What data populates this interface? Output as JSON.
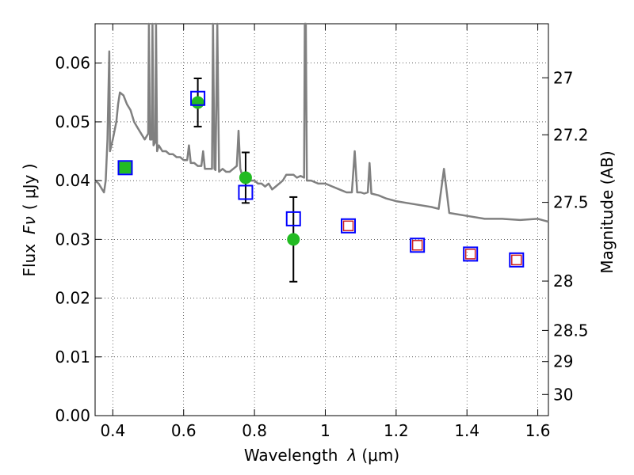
{
  "chart_data": {
    "type": "scatter",
    "xlabel_text": "Wavelength",
    "xlabel_symbol": "λ",
    "xlabel_unit": "(μm)",
    "ylabel_text": "Flux",
    "ylabel_symbol": "Fν",
    "ylabel_unit": "( μJy )",
    "y2label": "Magnitude (AB)",
    "xlim": [
      0.35,
      1.63
    ],
    "ylim": [
      0.0,
      0.0667
    ],
    "grid": true,
    "x_ticks": [
      {
        "value": 0.4,
        "label": "0.4"
      },
      {
        "value": 0.6,
        "label": "0.6"
      },
      {
        "value": 0.8,
        "label": "0.8"
      },
      {
        "value": 1.0,
        "label": "1"
      },
      {
        "value": 1.2,
        "label": "1.2"
      },
      {
        "value": 1.4,
        "label": "1.4"
      },
      {
        "value": 1.6,
        "label": "1.6"
      }
    ],
    "y_ticks": [
      {
        "value": 0.0,
        "label": "0.00"
      },
      {
        "value": 0.01,
        "label": "0.01"
      },
      {
        "value": 0.02,
        "label": "0.02"
      },
      {
        "value": 0.03,
        "label": "0.03"
      },
      {
        "value": 0.04,
        "label": "0.04"
      },
      {
        "value": 0.05,
        "label": "0.05"
      },
      {
        "value": 0.06,
        "label": "0.06"
      }
    ],
    "y2_ticks": [
      {
        "label": "27",
        "flux": 0.0575
      },
      {
        "label": "27.2",
        "flux": 0.0478
      },
      {
        "label": "27.5",
        "flux": 0.0363
      },
      {
        "label": "28",
        "flux": 0.0229
      },
      {
        "label": "28.5",
        "flux": 0.0145
      },
      {
        "label": "29",
        "flux": 0.0092
      },
      {
        "label": "30",
        "flux": 0.0036
      }
    ],
    "series": [
      {
        "kind": "model_spectrum",
        "color": "#808080",
        "points": [
          [
            0.35,
            0.04
          ],
          [
            0.36,
            0.0395
          ],
          [
            0.37,
            0.0385
          ],
          [
            0.375,
            0.038
          ],
          [
            0.38,
            0.04
          ],
          [
            0.385,
            0.047
          ],
          [
            0.39,
            0.062
          ],
          [
            0.392,
            0.045
          ],
          [
            0.4,
            0.047
          ],
          [
            0.41,
            0.05
          ],
          [
            0.415,
            0.053
          ],
          [
            0.42,
            0.055
          ],
          [
            0.43,
            0.0545
          ],
          [
            0.44,
            0.053
          ],
          [
            0.45,
            0.052
          ],
          [
            0.46,
            0.05
          ],
          [
            0.47,
            0.049
          ],
          [
            0.48,
            0.048
          ],
          [
            0.49,
            0.047
          ],
          [
            0.5,
            0.048
          ],
          [
            0.502,
            0.0667
          ],
          [
            0.505,
            0.047
          ],
          [
            0.51,
            0.047
          ],
          [
            0.512,
            0.0667
          ],
          [
            0.515,
            0.046
          ],
          [
            0.52,
            0.0465
          ],
          [
            0.522,
            0.0667
          ],
          [
            0.525,
            0.045
          ],
          [
            0.53,
            0.046
          ],
          [
            0.54,
            0.045
          ],
          [
            0.55,
            0.045
          ],
          [
            0.56,
            0.0445
          ],
          [
            0.57,
            0.0445
          ],
          [
            0.58,
            0.044
          ],
          [
            0.59,
            0.044
          ],
          [
            0.6,
            0.0435
          ],
          [
            0.61,
            0.0435
          ],
          [
            0.615,
            0.046
          ],
          [
            0.62,
            0.043
          ],
          [
            0.63,
            0.043
          ],
          [
            0.64,
            0.0425
          ],
          [
            0.65,
            0.0425
          ],
          [
            0.655,
            0.045
          ],
          [
            0.66,
            0.042
          ],
          [
            0.67,
            0.042
          ],
          [
            0.68,
            0.042
          ],
          [
            0.683,
            0.0667
          ],
          [
            0.687,
            0.042
          ],
          [
            0.69,
            0.0418
          ],
          [
            0.695,
            0.0667
          ],
          [
            0.7,
            0.0415
          ],
          [
            0.71,
            0.042
          ],
          [
            0.72,
            0.0415
          ],
          [
            0.73,
            0.0415
          ],
          [
            0.74,
            0.042
          ],
          [
            0.75,
            0.0425
          ],
          [
            0.755,
            0.0485
          ],
          [
            0.76,
            0.042
          ],
          [
            0.77,
            0.04
          ],
          [
            0.78,
            0.0405
          ],
          [
            0.79,
            0.04
          ],
          [
            0.8,
            0.04
          ],
          [
            0.81,
            0.0395
          ],
          [
            0.82,
            0.0395
          ],
          [
            0.83,
            0.039
          ],
          [
            0.84,
            0.0395
          ],
          [
            0.85,
            0.0385
          ],
          [
            0.86,
            0.039
          ],
          [
            0.87,
            0.0395
          ],
          [
            0.88,
            0.04
          ],
          [
            0.89,
            0.041
          ],
          [
            0.9,
            0.041
          ],
          [
            0.91,
            0.041
          ],
          [
            0.92,
            0.0405
          ],
          [
            0.93,
            0.0408
          ],
          [
            0.94,
            0.0405
          ],
          [
            0.942,
            0.0667
          ],
          [
            0.945,
            0.0667
          ],
          [
            0.948,
            0.04
          ],
          [
            0.96,
            0.04
          ],
          [
            0.98,
            0.0395
          ],
          [
            1.0,
            0.0395
          ],
          [
            1.02,
            0.039
          ],
          [
            1.04,
            0.0385
          ],
          [
            1.06,
            0.038
          ],
          [
            1.075,
            0.038
          ],
          [
            1.083,
            0.045
          ],
          [
            1.09,
            0.038
          ],
          [
            1.1,
            0.038
          ],
          [
            1.11,
            0.0378
          ],
          [
            1.12,
            0.038
          ],
          [
            1.125,
            0.043
          ],
          [
            1.13,
            0.0378
          ],
          [
            1.15,
            0.0375
          ],
          [
            1.17,
            0.037
          ],
          [
            1.2,
            0.0365
          ],
          [
            1.25,
            0.036
          ],
          [
            1.3,
            0.0355
          ],
          [
            1.32,
            0.0352
          ],
          [
            1.335,
            0.042
          ],
          [
            1.35,
            0.0345
          ],
          [
            1.4,
            0.034
          ],
          [
            1.45,
            0.0335
          ],
          [
            1.5,
            0.0335
          ],
          [
            1.55,
            0.0333
          ],
          [
            1.6,
            0.0335
          ],
          [
            1.63,
            0.033
          ]
        ]
      },
      {
        "kind": "observed_flux",
        "color": "#22bb22",
        "points": [
          {
            "x": 0.435,
            "y": 0.0422,
            "err": 0.0
          },
          {
            "x": 0.64,
            "y": 0.0533,
            "err": 0.0041
          },
          {
            "x": 0.775,
            "y": 0.0405,
            "err": 0.0043
          },
          {
            "x": 0.91,
            "y": 0.03,
            "err": 0.0072
          }
        ]
      },
      {
        "kind": "model_bandpass_flux",
        "color": "#0000ff",
        "points": [
          {
            "x": 0.435,
            "y": 0.0422
          },
          {
            "x": 0.64,
            "y": 0.054
          },
          {
            "x": 0.775,
            "y": 0.038
          },
          {
            "x": 0.91,
            "y": 0.0335
          },
          {
            "x": 1.065,
            "y": 0.0323
          },
          {
            "x": 1.26,
            "y": 0.029
          },
          {
            "x": 1.41,
            "y": 0.0275
          },
          {
            "x": 1.54,
            "y": 0.0265
          }
        ]
      },
      {
        "kind": "nir_flux",
        "color": "#cc2222",
        "points": [
          {
            "x": 1.065,
            "y": 0.0323
          },
          {
            "x": 1.26,
            "y": 0.029
          },
          {
            "x": 1.41,
            "y": 0.0275
          },
          {
            "x": 1.54,
            "y": 0.0265
          }
        ]
      }
    ]
  }
}
